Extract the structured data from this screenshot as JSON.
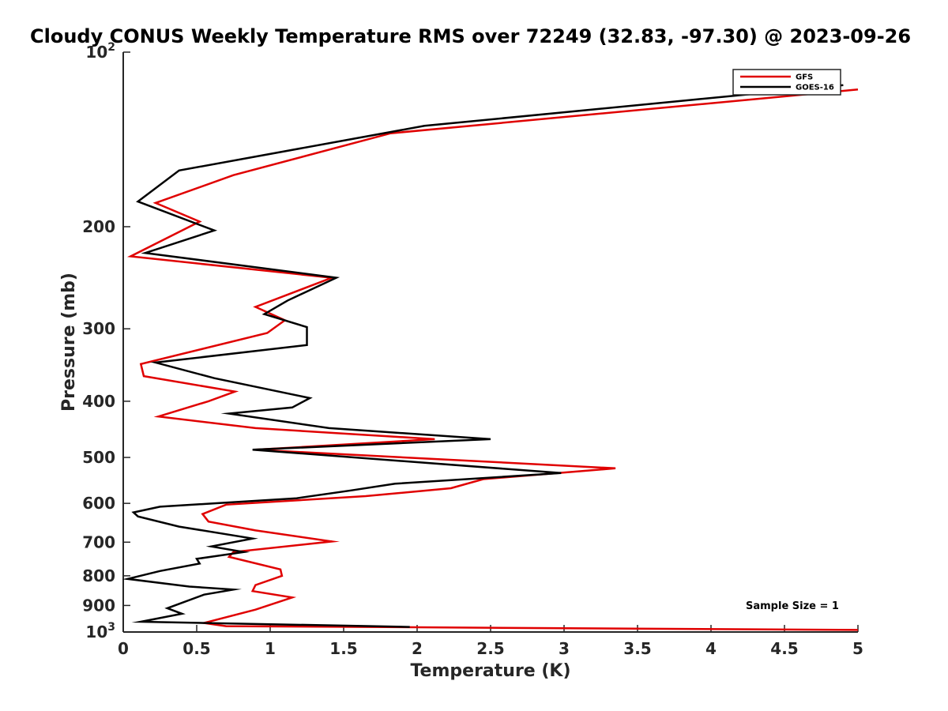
{
  "chart_data": {
    "type": "line",
    "title": "Cloudy CONUS Weekly Temperature RMS over 72249 (32.83, -97.30) @ 2023-09-26",
    "xlabel": "Temperature (K)",
    "ylabel": "Pressure (mb)",
    "xlim": [
      0,
      5
    ],
    "ylim": [
      100,
      1000
    ],
    "y_scale": "log",
    "y_reversed": true,
    "grid": false,
    "legend_position": "top-right",
    "x_ticks": [
      0,
      0.5,
      1,
      1.5,
      2,
      2.5,
      3,
      3.5,
      4,
      4.5,
      5
    ],
    "x_tick_labels": [
      "0",
      "0.5",
      "1",
      "1.5",
      "2",
      "2.5",
      "3",
      "3.5",
      "4",
      "4.5",
      "5"
    ],
    "y_ticks": [
      100,
      200,
      300,
      400,
      500,
      600,
      700,
      800,
      900,
      1000
    ],
    "y_tick_labels": [
      {
        "base": "10",
        "exp": "2"
      },
      {
        "base": "200",
        "exp": ""
      },
      {
        "base": "300",
        "exp": ""
      },
      {
        "base": "400",
        "exp": ""
      },
      {
        "base": "500",
        "exp": ""
      },
      {
        "base": "600",
        "exp": ""
      },
      {
        "base": "700",
        "exp": ""
      },
      {
        "base": "800",
        "exp": ""
      },
      {
        "base": "900",
        "exp": ""
      },
      {
        "base": "10",
        "exp": "3"
      }
    ],
    "annotation": "Sample Size = 1",
    "series": [
      {
        "name": "GFS",
        "color": "#e00000",
        "points": [
          [
            5.0,
            116
          ],
          [
            1.82,
            138
          ],
          [
            0.75,
            163
          ],
          [
            0.22,
            182
          ],
          [
            0.52,
            196
          ],
          [
            0.05,
            225
          ],
          [
            1.42,
            245
          ],
          [
            0.9,
            275
          ],
          [
            1.1,
            290
          ],
          [
            0.98,
            305
          ],
          [
            0.12,
            345
          ],
          [
            0.14,
            362
          ],
          [
            0.76,
            385
          ],
          [
            0.58,
            400
          ],
          [
            0.24,
            425
          ],
          [
            0.9,
            445
          ],
          [
            2.12,
            465
          ],
          [
            0.9,
            485
          ],
          [
            3.35,
            522
          ],
          [
            2.45,
            545
          ],
          [
            2.23,
            565
          ],
          [
            1.65,
            583
          ],
          [
            0.7,
            603
          ],
          [
            0.54,
            626
          ],
          [
            0.58,
            645
          ],
          [
            0.9,
            668
          ],
          [
            1.42,
            698
          ],
          [
            0.75,
            728
          ],
          [
            0.72,
            742
          ],
          [
            1.07,
            780
          ],
          [
            1.08,
            800
          ],
          [
            0.9,
            830
          ],
          [
            0.88,
            850
          ],
          [
            1.15,
            872
          ],
          [
            0.9,
            915
          ],
          [
            0.55,
            965
          ],
          [
            0.7,
            977
          ],
          [
            5.0,
            992
          ]
        ]
      },
      {
        "name": "GOES-16",
        "color": "#000000",
        "points": [
          [
            4.9,
            114
          ],
          [
            2.05,
            134
          ],
          [
            0.38,
            160
          ],
          [
            0.1,
            181
          ],
          [
            0.62,
            203
          ],
          [
            0.15,
            222
          ],
          [
            1.45,
            245
          ],
          [
            1.12,
            268
          ],
          [
            0.96,
            283
          ],
          [
            1.25,
            298
          ],
          [
            1.25,
            320
          ],
          [
            0.22,
            343
          ],
          [
            0.62,
            365
          ],
          [
            1.27,
            395
          ],
          [
            1.15,
            410
          ],
          [
            0.72,
            420
          ],
          [
            1.4,
            445
          ],
          [
            2.5,
            465
          ],
          [
            0.88,
            485
          ],
          [
            2.98,
            532
          ],
          [
            1.85,
            555
          ],
          [
            1.55,
            570
          ],
          [
            1.18,
            588
          ],
          [
            0.25,
            608
          ],
          [
            0.07,
            622
          ],
          [
            0.1,
            632
          ],
          [
            0.38,
            658
          ],
          [
            0.88,
            690
          ],
          [
            0.6,
            712
          ],
          [
            0.82,
            728
          ],
          [
            0.5,
            748
          ],
          [
            0.52,
            762
          ],
          [
            0.25,
            785
          ],
          [
            0.03,
            810
          ],
          [
            0.45,
            835
          ],
          [
            0.75,
            845
          ],
          [
            0.55,
            862
          ],
          [
            0.3,
            910
          ],
          [
            0.4,
            930
          ],
          [
            0.12,
            960
          ],
          [
            1.95,
            980
          ]
        ]
      }
    ]
  }
}
